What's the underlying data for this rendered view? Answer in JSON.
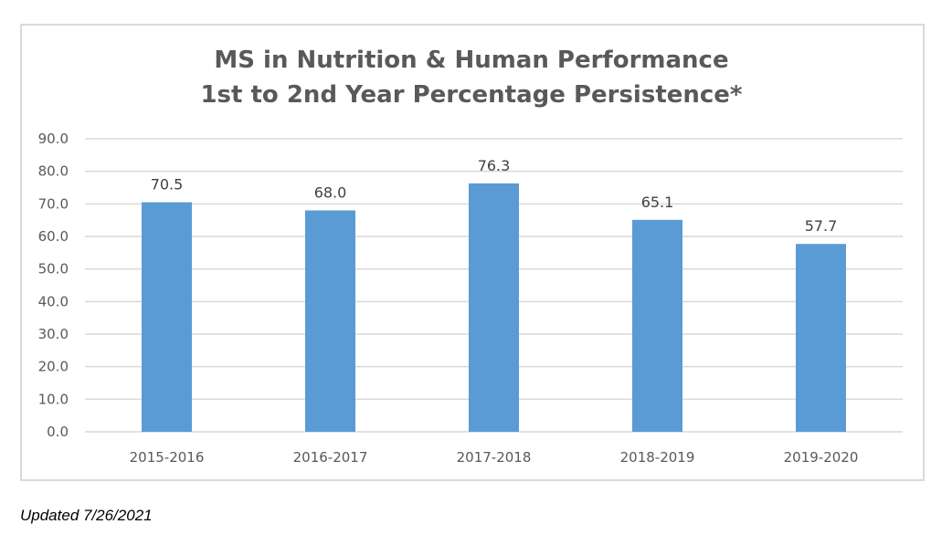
{
  "chart_data": {
    "type": "bar",
    "title": [
      "MS in Nutrition & Human Performance",
      "1st to 2nd Year Percentage Persistence*"
    ],
    "categories": [
      "2015-2016",
      "2016-2017",
      "2017-2018",
      "2018-2019",
      "2019-2020"
    ],
    "values": [
      70.5,
      68.0,
      76.3,
      65.1,
      57.7
    ],
    "data_labels": [
      "70.5",
      "68.0",
      "76.3",
      "65.1",
      "57.7"
    ],
    "ylim": [
      0,
      90
    ],
    "yticks": [
      "0.0",
      "10.0",
      "20.0",
      "30.0",
      "40.0",
      "50.0",
      "60.0",
      "70.0",
      "80.0",
      "90.0"
    ],
    "grid": true,
    "legend": "none",
    "bar_color": "#5b9bd5",
    "grid_color": "#d9d9d9"
  },
  "footer": {
    "updated": "Updated 7/26/2021"
  }
}
